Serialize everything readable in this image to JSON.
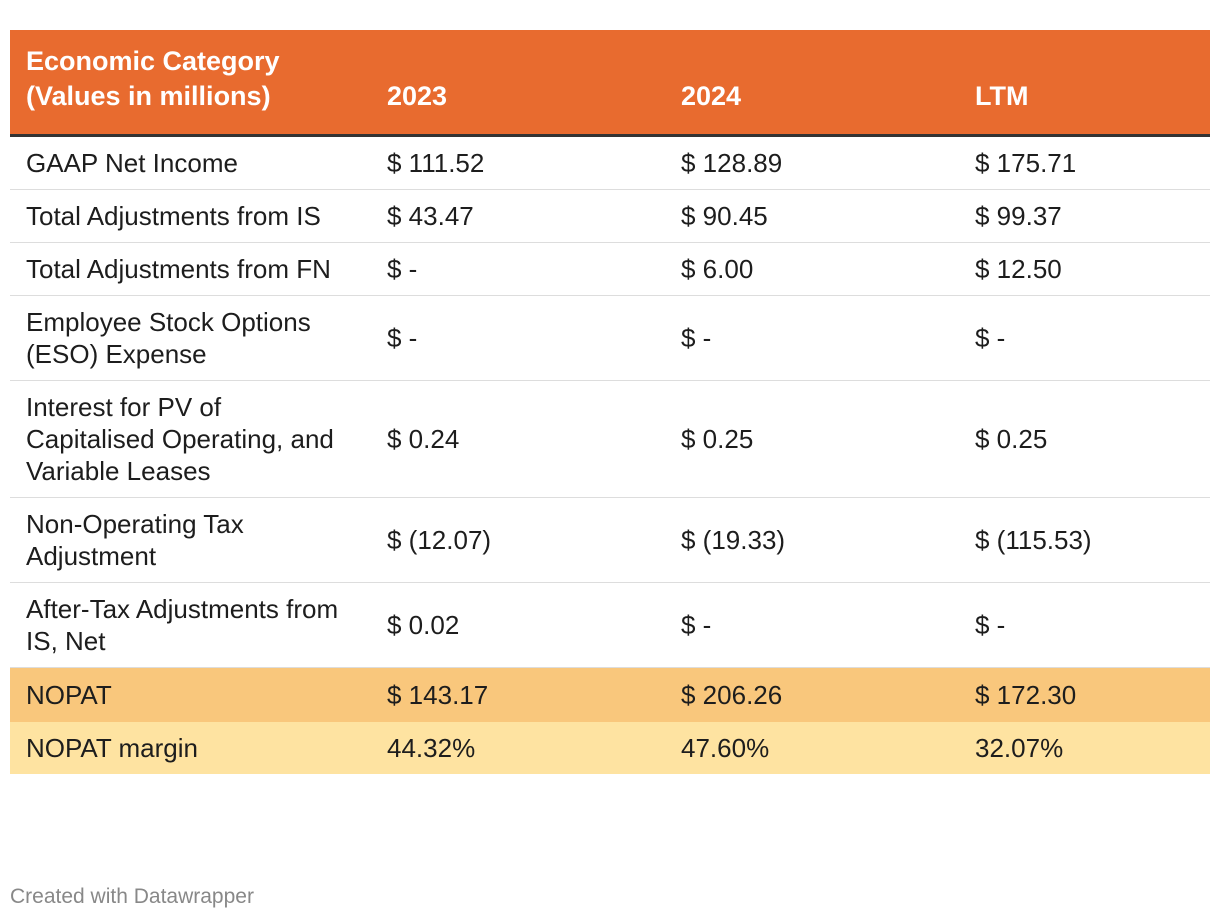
{
  "table": {
    "headers": [
      "Economic Category\n(Values in millions)",
      "2023",
      "2024",
      "LTM"
    ],
    "header_line1": "Economic Category",
    "header_line2": "(Values in millions)",
    "rows": [
      {
        "label": "GAAP Net Income",
        "values": [
          "$ 111.52",
          "$ 128.89",
          "$ 175.71"
        ]
      },
      {
        "label": "Total Adjustments from IS",
        "values": [
          "$ 43.47",
          "$ 90.45",
          "$ 99.37"
        ]
      },
      {
        "label": "Total Adjustments from FN",
        "values": [
          "$ -",
          "$ 6.00",
          "$ 12.50"
        ]
      },
      {
        "label": "Employee Stock Options (ESO) Expense",
        "values": [
          "$ -",
          "$ -",
          "$ -"
        ]
      },
      {
        "label": "Interest for PV of Capitalised Operating, and Variable Leases",
        "values": [
          "$ 0.24",
          "$ 0.25",
          "$ 0.25"
        ]
      },
      {
        "label": "Non-Operating Tax Adjustment",
        "values": [
          "$ (12.07)",
          "$ (19.33)",
          "$ (115.53)"
        ]
      },
      {
        "label": "After-Tax Adjustments from IS, Net",
        "values": [
          "$ 0.02",
          "$ -",
          "$ -"
        ]
      },
      {
        "label": "NOPAT",
        "values": [
          "$ 143.17",
          "$ 206.26",
          "$ 172.30"
        ]
      },
      {
        "label": "NOPAT margin",
        "values": [
          "44.32%",
          "47.60%",
          "32.07%"
        ]
      }
    ]
  },
  "colors": {
    "header_bg": "#e86b2f",
    "nopat_bg": "#f9c77c",
    "margin_bg": "#fee3a1"
  },
  "footer": {
    "credit": "Created with Datawrapper"
  }
}
